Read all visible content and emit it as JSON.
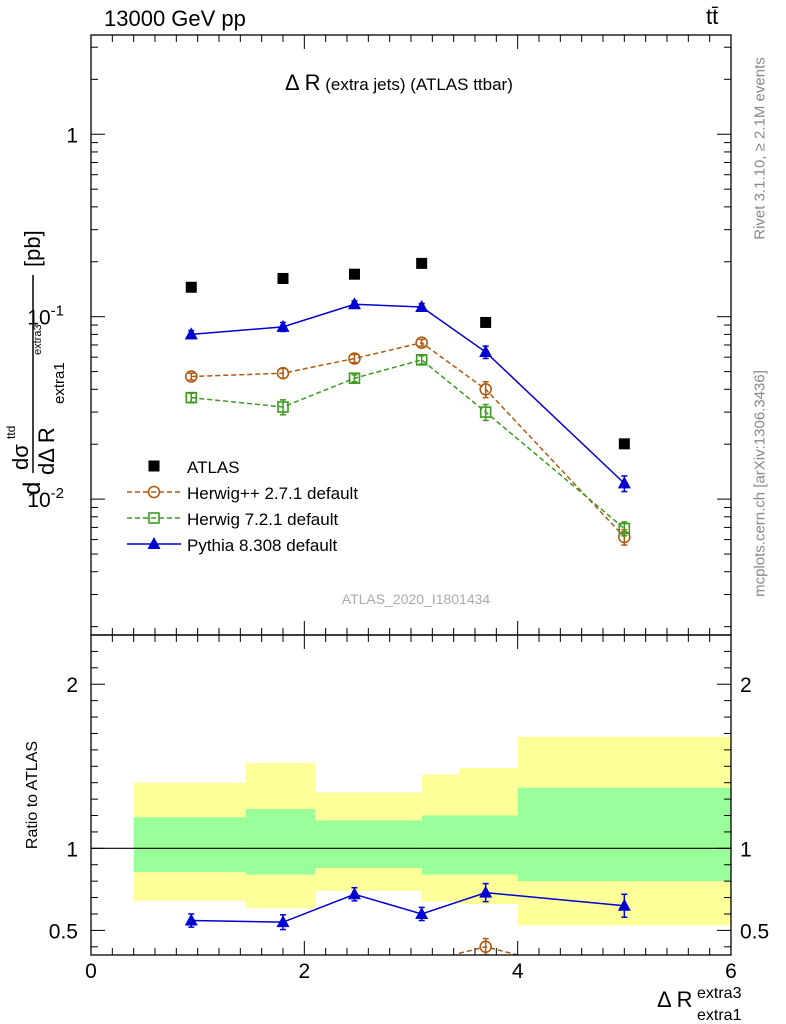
{
  "header": {
    "energy_label": "13000 GeV pp",
    "process_label": "tt̄"
  },
  "side": {
    "rivet_label": "Rivet 3.1.10, ≥ 2.1M events",
    "source_label": "mcplots.cern.ch [arXiv:1306.3436]"
  },
  "colors": {
    "atlas": "#000000",
    "herwigpp": "#b05a10",
    "herwig7": "#3c9a1e",
    "pythia": "#0000d0",
    "band_inner": "#99ff99",
    "band_outer": "#ffff99"
  },
  "chart_data": [
    {
      "type": "scatter",
      "panel": "main",
      "title": "Δ R (extra jets) (ATLAS ttbar)",
      "ylabel": "dσ^ttd / dΔ R_extra1^extra3 [pb]",
      "yscale": "log",
      "ylim": [
        0.0018,
        3.5
      ],
      "xlim": [
        0,
        6
      ],
      "ytick_labels": [
        "10^-2",
        "10^-1",
        "1"
      ],
      "watermark": "ATLAS_2020_I1801434",
      "legend_position": "bottom-left",
      "x": [
        0.94,
        1.8,
        2.47,
        3.1,
        3.7,
        5.0
      ],
      "series": [
        {
          "name": "ATLAS",
          "style": "square",
          "values": [
            0.145,
            0.162,
            0.171,
            0.196,
            0.093,
            0.0201
          ]
        },
        {
          "name": "Herwig++ 2.7.1 default",
          "style": "circle-dashed",
          "values": [
            0.047,
            0.049,
            0.059,
            0.072,
            0.04,
            0.0062
          ],
          "errors": [
            0.002,
            0.003,
            0.003,
            0.003,
            0.004,
            0.0006
          ]
        },
        {
          "name": "Herwig 7.2.1 default",
          "style": "square-open-dashed",
          "values": [
            0.036,
            0.032,
            0.046,
            0.058,
            0.03,
            0.0069
          ],
          "errors": [
            0.002,
            0.003,
            0.002,
            0.003,
            0.003,
            0.0006
          ]
        },
        {
          "name": "Pythia 8.308 default",
          "style": "triangle-solid",
          "values": [
            0.08,
            0.088,
            0.117,
            0.113,
            0.064,
            0.0122
          ],
          "errors": [
            0.004,
            0.005,
            0.005,
            0.005,
            0.005,
            0.0012
          ]
        }
      ]
    },
    {
      "type": "line",
      "panel": "ratio",
      "ylabel": "Ratio to ATLAS",
      "xlabel": "Δ R_extra1^extra3",
      "ylim": [
        0.35,
        2.3
      ],
      "xlim": [
        0,
        6
      ],
      "ytick_labels": [
        "0.5",
        "1",
        "2"
      ],
      "xtick_labels": [
        "0",
        "2",
        "4",
        "6"
      ],
      "bands": [
        {
          "x0": 0.4,
          "x1": 1.45,
          "inner": [
            0.855,
            1.19
          ],
          "outer": [
            0.68,
            1.4
          ]
        },
        {
          "x0": 1.45,
          "x1": 2.1,
          "inner": [
            0.84,
            1.24
          ],
          "outer": [
            0.635,
            1.52
          ]
        },
        {
          "x0": 2.1,
          "x1": 3.1,
          "inner": [
            0.88,
            1.17
          ],
          "outer": [
            0.74,
            1.34
          ]
        },
        {
          "x0": 3.1,
          "x1": 3.45,
          "inner": [
            0.84,
            1.2
          ],
          "outer": [
            0.675,
            1.45
          ]
        },
        {
          "x0": 3.45,
          "x1": 4.0,
          "inner": [
            0.84,
            1.2
          ],
          "outer": [
            0.66,
            1.49
          ]
        },
        {
          "x0": 4.0,
          "x1": 6.0,
          "inner": [
            0.8,
            1.37
          ],
          "outer": [
            0.53,
            1.68
          ]
        }
      ],
      "series": [
        {
          "name": "Pythia 8.308 default",
          "x": [
            0.94,
            1.8,
            2.47,
            3.1,
            3.7,
            5.0
          ],
          "values": [
            0.56,
            0.55,
            0.72,
            0.6,
            0.73,
            0.65
          ],
          "errors": [
            0.04,
            0.045,
            0.04,
            0.04,
            0.055,
            0.07
          ]
        },
        {
          "name": "Herwig++ 2.7.1 default",
          "x": [
            3.45,
            3.7,
            4.0
          ],
          "values": [
            0.36,
            0.4,
            0.35
          ],
          "errors": [
            0,
            0.05,
            0
          ]
        }
      ]
    }
  ]
}
